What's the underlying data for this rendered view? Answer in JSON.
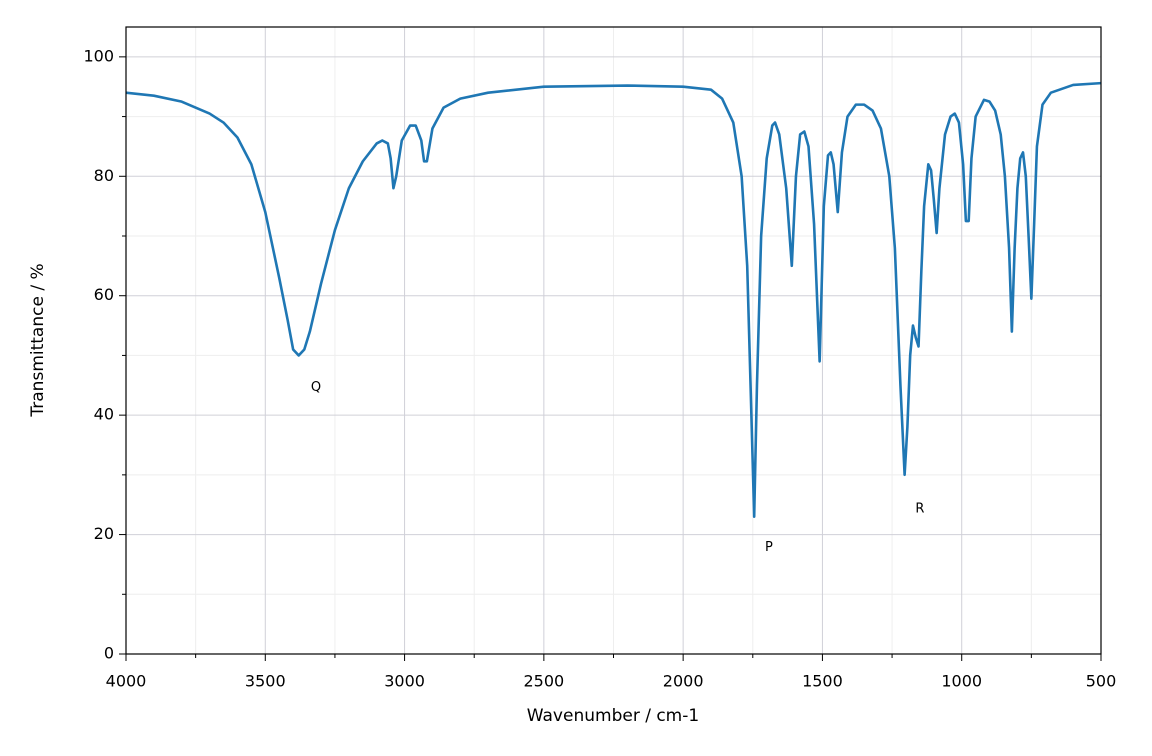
{
  "chart_data": {
    "type": "line",
    "x_label": "Wavenumber / cm-1",
    "y_label": "Transmittance / %",
    "x": [
      4000,
      3900,
      3800,
      3700,
      3650,
      3600,
      3550,
      3500,
      3450,
      3420,
      3400,
      3380,
      3360,
      3340,
      3300,
      3250,
      3200,
      3150,
      3100,
      3080,
      3060,
      3050,
      3040,
      3030,
      3010,
      2980,
      2960,
      2940,
      2930,
      2920,
      2900,
      2860,
      2800,
      2700,
      2500,
      2200,
      2000,
      1900,
      1860,
      1820,
      1790,
      1770,
      1755,
      1745,
      1735,
      1720,
      1700,
      1680,
      1670,
      1655,
      1630,
      1610,
      1595,
      1580,
      1565,
      1550,
      1530,
      1510,
      1495,
      1480,
      1470,
      1460,
      1445,
      1430,
      1410,
      1380,
      1350,
      1320,
      1290,
      1260,
      1240,
      1220,
      1205,
      1195,
      1185,
      1175,
      1165,
      1155,
      1145,
      1135,
      1120,
      1110,
      1100,
      1090,
      1080,
      1060,
      1040,
      1025,
      1010,
      995,
      985,
      975,
      965,
      950,
      920,
      900,
      880,
      860,
      845,
      830,
      820,
      810,
      800,
      790,
      780,
      770,
      760,
      750,
      740,
      730,
      710,
      680,
      600,
      500
    ],
    "values": [
      94,
      93.5,
      92.5,
      90.5,
      89,
      86.5,
      82,
      74,
      63,
      56,
      51,
      50,
      51,
      54,
      62,
      71,
      78,
      82.5,
      85.5,
      86,
      85.5,
      83,
      78,
      80,
      86,
      88.5,
      88.5,
      86,
      82.5,
      82.5,
      88,
      91.5,
      93,
      94,
      95,
      95.2,
      95,
      94.5,
      93,
      89,
      80,
      65,
      40,
      23,
      45,
      70,
      83,
      88.5,
      89,
      87,
      78,
      65,
      80,
      87,
      87.5,
      85,
      72,
      49,
      75,
      83.5,
      84,
      82,
      74,
      84,
      90,
      92,
      92,
      91,
      88,
      80,
      68,
      45,
      30,
      38,
      50,
      55,
      53,
      51.5,
      64,
      75,
      82,
      81,
      76,
      70.5,
      78,
      87,
      90,
      90.5,
      89,
      82,
      72.5,
      72.5,
      83,
      90,
      92.8,
      92.5,
      91,
      87,
      80,
      68,
      54,
      68,
      78,
      83,
      84,
      80,
      70,
      59.5,
      72,
      85,
      92,
      94,
      95.3,
      95.6
    ],
    "color": "#1f77b4",
    "xlim": [
      4000,
      500
    ],
    "ylim": [
      0,
      105
    ],
    "xticks": [
      4000,
      3500,
      3000,
      2500,
      2000,
      1500,
      1000,
      500
    ],
    "yticks": [
      0,
      20,
      40,
      60,
      80,
      100
    ],
    "xminorticks": [
      3750,
      3250,
      2750,
      2250,
      1750,
      1250,
      750
    ],
    "yminorticks": [
      10,
      30,
      50,
      70,
      90
    ],
    "grid": true,
    "annotations": [
      {
        "text": "Q",
        "x": 3318,
        "y": 44.6
      },
      {
        "text": "P",
        "x": 1692,
        "y": 17.8
      },
      {
        "text": "R",
        "x": 1150,
        "y": 24.3
      }
    ]
  }
}
